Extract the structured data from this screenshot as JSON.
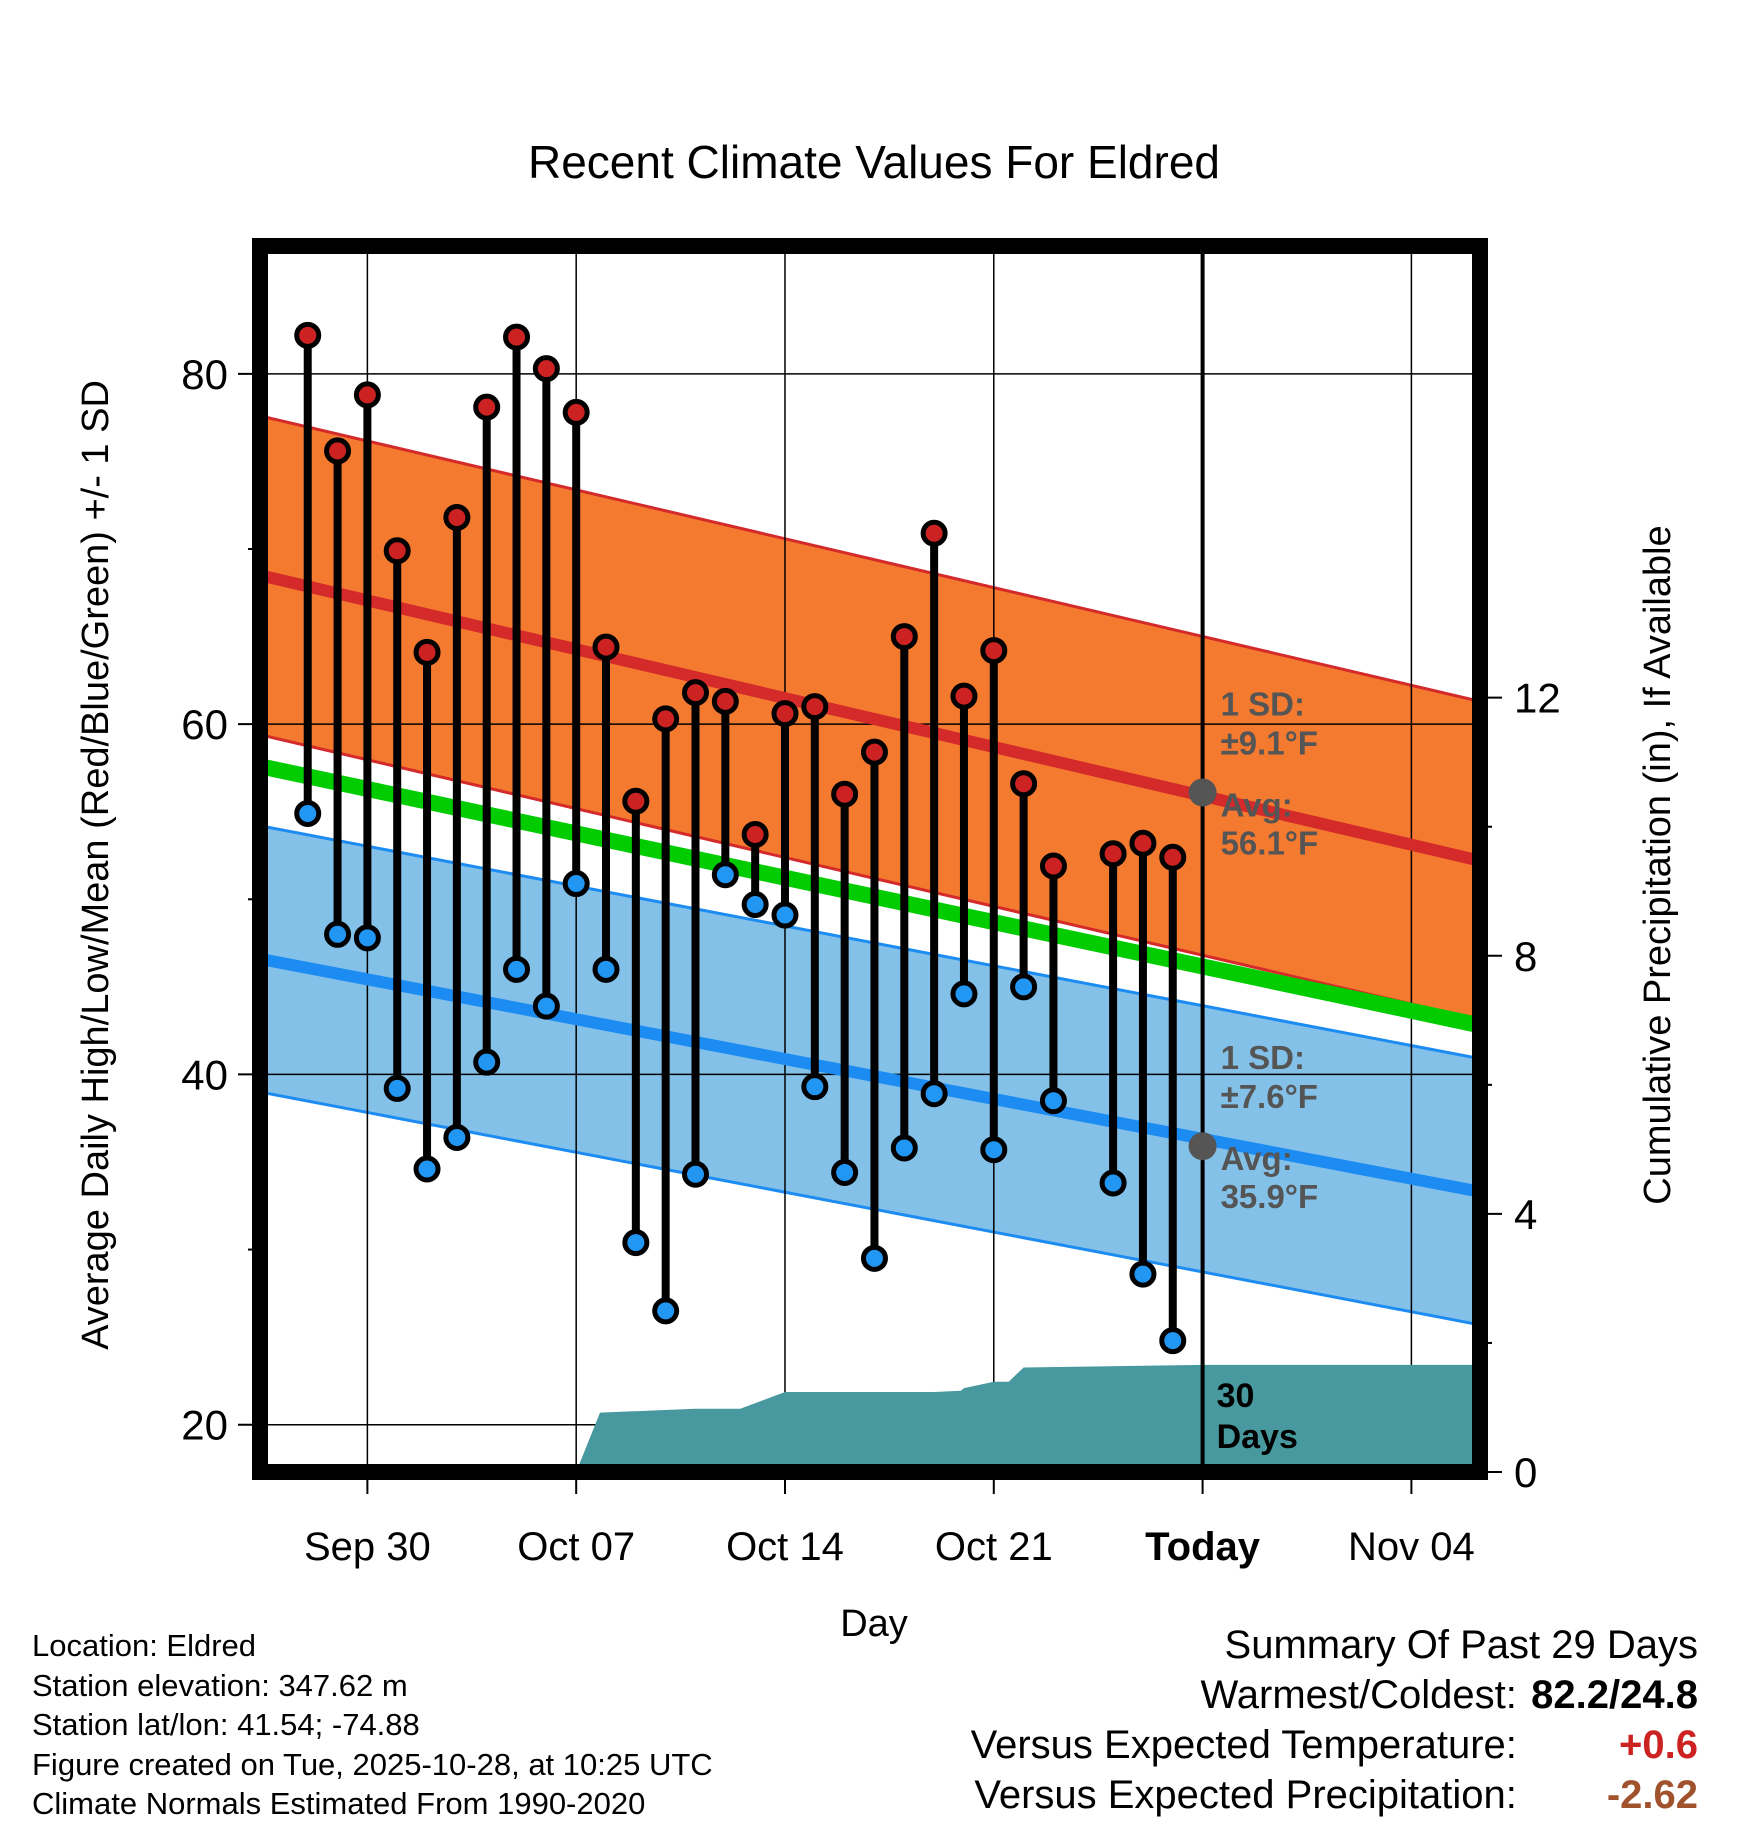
{
  "chart_data": {
    "type": "line",
    "title": "Recent Climate Values For Eldred",
    "xlabel": "Day",
    "ylabel": "Average Daily High/Low/Mean (Red/Blue/Green) +/- 1 SD",
    "y2label": "Cumulative Precipitation (in), If Available",
    "ylim": [
      17.3,
      87.3
    ],
    "y2lim": [
      0,
      19.0
    ],
    "xlim": [
      -3.6,
      37.3
    ],
    "yticks": [
      20,
      40,
      60,
      80
    ],
    "y2ticks": [
      0,
      4,
      8,
      12
    ],
    "xticks": [
      {
        "day": 0,
        "label": "Sep 30"
      },
      {
        "day": 7,
        "label": "Oct 07"
      },
      {
        "day": 14,
        "label": "Oct 14"
      },
      {
        "day": 21,
        "label": "Oct 21"
      },
      {
        "day": 28,
        "label": "Today"
      },
      {
        "day": 35,
        "label": "Nov 04"
      }
    ],
    "days": [
      -2,
      -1,
      0,
      1,
      2,
      3,
      4,
      5,
      6,
      7,
      8,
      9,
      10,
      11,
      12,
      13,
      14,
      15,
      16,
      17,
      18,
      19,
      20,
      21,
      22,
      23,
      25,
      26,
      27
    ],
    "highs": [
      82.2,
      75.6,
      78.8,
      69.9,
      64.1,
      71.8,
      78.1,
      82.1,
      80.3,
      77.8,
      64.4,
      55.6,
      60.3,
      61.8,
      61.3,
      53.7,
      60.6,
      61.0,
      56.0,
      58.4,
      65.0,
      70.9,
      61.6,
      64.2,
      56.6,
      51.9,
      52.6,
      53.2,
      52.4
    ],
    "lows": [
      54.9,
      48.0,
      47.8,
      39.2,
      34.6,
      36.4,
      40.7,
      46.0,
      43.9,
      50.9,
      46.0,
      30.4,
      26.5,
      34.3,
      51.4,
      49.7,
      49.1,
      39.3,
      34.4,
      29.5,
      35.8,
      38.9,
      44.6,
      35.7,
      45.0,
      38.5,
      33.8,
      28.6,
      24.8
    ],
    "normal_high": {
      "start": 68.5,
      "end": 52.2
    },
    "normal_high_sd": 9.1,
    "normal_low": {
      "start": 46.6,
      "end": 33.3
    },
    "normal_low_sd": 7.6,
    "normal_mean": {
      "start": 57.6,
      "end": 42.8
    },
    "today_avg_high": 56.1,
    "today_avg_low": 35.9,
    "precip_cumulative": {
      "x": [
        -3.6,
        3.5,
        6.5,
        7.0,
        7.8,
        11.0,
        12.0,
        12.5,
        14.0,
        16.0,
        17.0,
        18.0,
        19.0,
        19.9,
        20.0,
        21.0,
        21.5,
        22.0,
        28.0,
        37.3
      ],
      "y": [
        0,
        0,
        0,
        0,
        0.92,
        0.98,
        0.98,
        0.98,
        1.24,
        1.24,
        1.24,
        1.24,
        1.24,
        1.26,
        1.3,
        1.4,
        1.4,
        1.62,
        1.66,
        1.66
      ]
    },
    "annotations": {
      "high_sd_label": "1 SD:",
      "high_sd_value": "±9.1°F",
      "high_avg_label": "Avg:",
      "high_avg_value": "56.1°F",
      "low_sd_label": "1 SD:",
      "low_sd_value": "±7.6°F",
      "low_avg_label": "Avg:",
      "low_avg_value": "35.9°F",
      "days_number": "30",
      "days_word": "Days"
    },
    "colors": {
      "high_band": "#f47a30",
      "high_line": "#d42a2a",
      "low_band": "#84c1e9",
      "low_line": "#1d8cf2",
      "mean_line": "#00cc00",
      "precip": "#47999f",
      "high_dot": "#cc2222",
      "low_dot": "#2196f3",
      "annotation": "#555555"
    }
  },
  "info": {
    "location": "Location: Eldred",
    "elevation": "Station elevation: 347.62 m",
    "latlon": "Station lat/lon: 41.54; -74.88",
    "created": "Figure created on Tue, 2025-10-28, at 10:25 UTC",
    "normals": "Climate Normals Estimated From 1990-2020"
  },
  "summary": {
    "title": "Summary Of Past 29 Days",
    "warmest_label": "Warmest/Coldest:",
    "warmest_value": "82.2/24.8",
    "temp_label": "Versus Expected Temperature:",
    "temp_value": "+0.6",
    "temp_color": "#cc2222",
    "precip_label": "Versus Expected Precipitation:",
    "precip_value": "-2.62",
    "precip_color": "#a0522d"
  }
}
